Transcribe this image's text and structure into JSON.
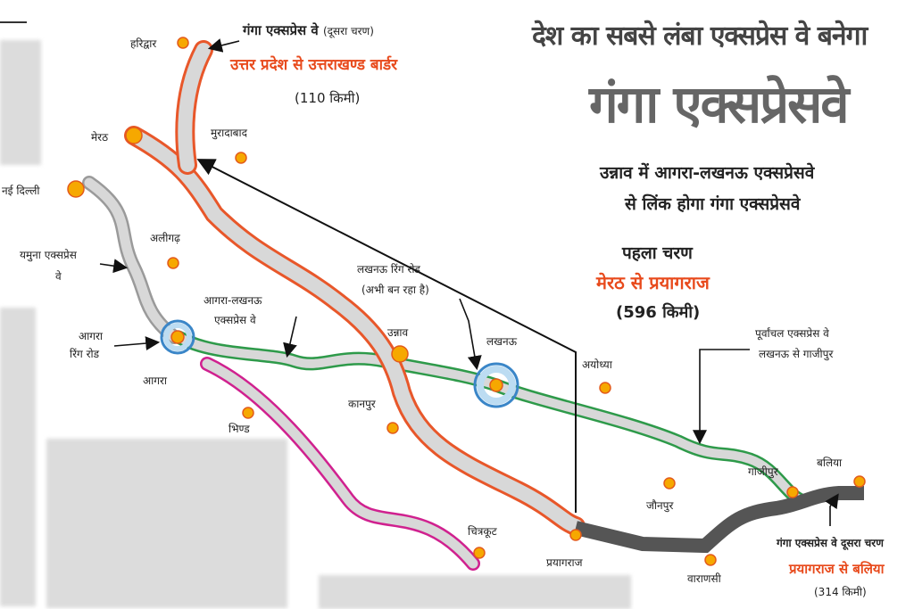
{
  "headline": {
    "line1": "देश का सबसे लंबा एक्सप्रेस वे बनेगा",
    "title": "गंगा एक्सप्रेसवे",
    "sub1": "उन्नाव में आगरा-लखनऊ एक्सप्रेसवे",
    "sub2": "से लिंक होगा गंगा एक्सप्रेसवे"
  },
  "phase1": {
    "label": "पहला चरण",
    "route": "मेरठ से प्रयागराज",
    "length": "(596 किमी)"
  },
  "phase2_north": {
    "label": "गंगा एक्सप्रेस वे",
    "label_small": "(दूसरा चरण)",
    "route": "उत्तर प्रदेश से उत्तराखण्ड बार्डर",
    "length": "(110 किमी)"
  },
  "phase2_east": {
    "label": "गंगा एक्सप्रेस वे दूसरा चरण",
    "route": "प्रयागराज से बलिया",
    "length": "(314 किमी)"
  },
  "annotations": {
    "yamuna": "यमुना एक्सप्रेस",
    "yamuna2": "वे",
    "agra_ring": "आगरा",
    "agra_ring2": "रिंग रोड",
    "agra_lucknow": "आगरा-लखनऊ",
    "agra_lucknow2": "एक्सप्रेस वे",
    "lucknow_ring": "लखनऊ रिंग रोड",
    "lucknow_ring2": "(अभी बन रहा है)",
    "purvanchal": "पूर्वांचल एक्सप्रेस वे",
    "purvanchal2": "लखनऊ से गाजीपुर"
  },
  "cities": {
    "haridwar": "हरिद्वार",
    "meerut": "मेरठ",
    "moradabad": "मुरादाबाद",
    "delhi": "नई दिल्ली",
    "aligarh": "अलीगढ़",
    "agra": "आगरा",
    "bhind": "भिण्ड",
    "unnao": "उन्नाव",
    "kanpur": "कानपुर",
    "lucknow": "लखनऊ",
    "ayodhya": "अयोध्या",
    "ghazipur": "गाजीपुर",
    "ballia": "बलिया",
    "jaunpur": "जौनपुर",
    "varanasi": "वाराणसी",
    "prayagraj": "प्रयागराज",
    "chitrakoot": "चित्रकूट"
  },
  "colors": {
    "ganga": "#d8d8d8",
    "ganga_outline": "#e8572a",
    "green": "#2e9a4a",
    "pink": "#d0218f",
    "dark": "#555555",
    "city": "#f6a800",
    "city_outline": "#e35b1b",
    "ring": "#3a86c8"
  }
}
